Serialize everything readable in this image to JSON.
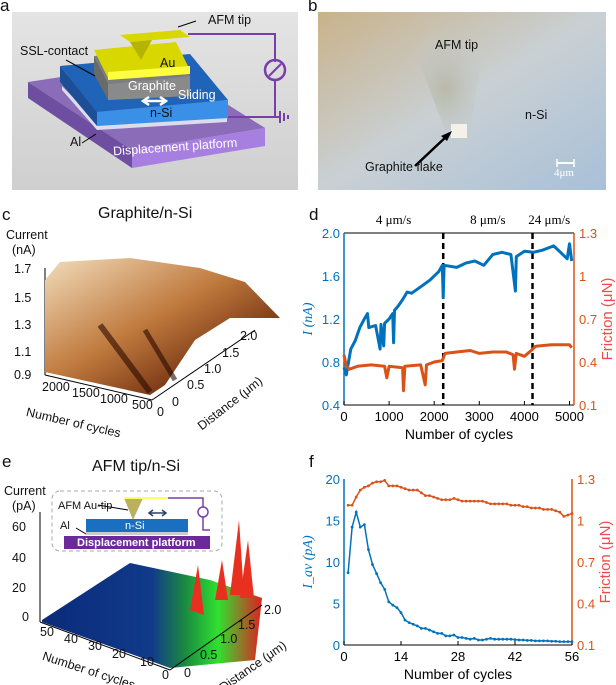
{
  "panels": {
    "a": {
      "label": "a",
      "labels": {
        "afm_tip": "AFM tip",
        "ssl_contact": "SSL-contact",
        "au": "Au",
        "graphite": "Graphite",
        "sliding": "Sliding",
        "nsi": "n-Si",
        "al": "Al",
        "platform": "Displacement platform"
      }
    },
    "b": {
      "label": "b",
      "labels": {
        "afm_tip": "AFM tip",
        "nsi": "n-Si",
        "flake": "Graphite flake",
        "scale": "4μm"
      }
    },
    "c": {
      "label": "c",
      "title": "Graphite/n-Si",
      "zlabel_1": "Current",
      "zlabel_2": "(nA)",
      "zticks": [
        "1.7",
        "1.5",
        "1.3",
        "1.1",
        "0.9"
      ],
      "xlabel": "Number of cycles",
      "xticks": [
        "2000",
        "1500",
        "1000",
        "500",
        "0"
      ],
      "ylabel": "Distance (μm)",
      "yticks": [
        "0",
        "0.5",
        "1.0",
        "1.5",
        "2.0"
      ]
    },
    "e": {
      "label": "e",
      "title": "AFM tip/n-Si",
      "zlabel_1": "Current",
      "zlabel_2": "(pA)",
      "zticks": [
        "60",
        "40",
        "20",
        "0"
      ],
      "xlabel": "Number of cycles",
      "xticks": [
        "50",
        "40",
        "30",
        "20",
        "10",
        "0"
      ],
      "ylabel": "Distance (μm)",
      "yticks": [
        "0",
        "0.5",
        "1.0",
        "1.5",
        "2.0"
      ],
      "inset": {
        "tip": "AFM Au-tip",
        "al": "Al",
        "nsi": "n-Si",
        "platform": "Displacement platform"
      }
    }
  },
  "chart_data": [
    {
      "panel": "d",
      "type": "line",
      "xlabel": "Number of cycles",
      "xlim": [
        0,
        5100
      ],
      "xticks": [
        0,
        1000,
        2000,
        3000,
        4000,
        5000
      ],
      "ylabel_left": "I (nA)",
      "ylim_left": [
        0.4,
        2.0
      ],
      "yticks_left": [
        "0.4",
        "0.8",
        "1.2",
        "1.6",
        "2.0"
      ],
      "ylabel_right": "Friction (μN)",
      "ylim_right": [
        0.1,
        1.3
      ],
      "yticks_right": [
        "0.1",
        "0.4",
        "0.7",
        "1",
        "1.3"
      ],
      "dividers": [
        2200,
        4180
      ],
      "regions": [
        "4 μm/s",
        "8 μm/s",
        "24 μm/s"
      ],
      "colors": {
        "current": "#0072bd",
        "friction": "#d95319"
      },
      "series": [
        {
          "axis": "left",
          "points": [
            [
              0,
              0.75
            ],
            [
              50,
              0.68
            ],
            [
              100,
              0.8
            ],
            [
              150,
              0.92
            ],
            [
              250,
              1.0
            ],
            [
              350,
              1.12
            ],
            [
              450,
              1.2
            ],
            [
              520,
              1.25
            ],
            [
              550,
              1.12
            ],
            [
              700,
              1.14
            ],
            [
              800,
              0.92
            ],
            [
              820,
              1.15
            ],
            [
              880,
              0.95
            ],
            [
              900,
              1.16
            ],
            [
              1000,
              1.2
            ],
            [
              1080,
              1.25
            ],
            [
              1100,
              0.98
            ],
            [
              1120,
              1.28
            ],
            [
              1200,
              1.32
            ],
            [
              1300,
              1.38
            ],
            [
              1400,
              1.45
            ],
            [
              1500,
              1.44
            ],
            [
              1700,
              1.5
            ],
            [
              1900,
              1.56
            ],
            [
              2100,
              1.64
            ],
            [
              2180,
              1.7
            ],
            [
              2200,
              1.4
            ],
            [
              2220,
              1.7
            ],
            [
              2500,
              1.68
            ],
            [
              2700,
              1.72
            ],
            [
              2900,
              1.74
            ],
            [
              3100,
              1.7
            ],
            [
              3300,
              1.8
            ],
            [
              3500,
              1.82
            ],
            [
              3700,
              1.8
            ],
            [
              3800,
              1.46
            ],
            [
              3820,
              1.78
            ],
            [
              4000,
              1.83
            ],
            [
              4200,
              1.82
            ],
            [
              4400,
              1.84
            ],
            [
              4650,
              1.88
            ],
            [
              4800,
              1.82
            ],
            [
              4950,
              1.76
            ],
            [
              5000,
              1.9
            ],
            [
              5050,
              1.74
            ]
          ]
        },
        {
          "axis": "right",
          "points": [
            [
              0,
              0.45
            ],
            [
              50,
              0.37
            ],
            [
              120,
              0.35
            ],
            [
              300,
              0.37
            ],
            [
              600,
              0.38
            ],
            [
              900,
              0.37
            ],
            [
              950,
              0.29
            ],
            [
              1000,
              0.37
            ],
            [
              1300,
              0.36
            ],
            [
              1320,
              0.2
            ],
            [
              1350,
              0.37
            ],
            [
              1700,
              0.38
            ],
            [
              1800,
              0.24
            ],
            [
              1830,
              0.38
            ],
            [
              2000,
              0.4
            ],
            [
              2180,
              0.41
            ],
            [
              2240,
              0.46
            ],
            [
              2500,
              0.47
            ],
            [
              2800,
              0.48
            ],
            [
              3000,
              0.46
            ],
            [
              3300,
              0.47
            ],
            [
              3600,
              0.47
            ],
            [
              3750,
              0.45
            ],
            [
              3780,
              0.35
            ],
            [
              3820,
              0.46
            ],
            [
              4000,
              0.44
            ],
            [
              4150,
              0.48
            ],
            [
              4250,
              0.51
            ],
            [
              4600,
              0.52
            ],
            [
              5000,
              0.52
            ],
            [
              5050,
              0.5
            ]
          ]
        }
      ]
    },
    {
      "panel": "f",
      "type": "line",
      "xlabel": "Number of cycles",
      "xlim": [
        0,
        56
      ],
      "xticks": [
        0,
        14,
        28,
        42,
        56
      ],
      "ylabel_left": "I_av (pA)",
      "ylim_left": [
        0,
        20
      ],
      "yticks_left": [
        "0",
        "5",
        "10",
        "15",
        "20"
      ],
      "ylabel_right": "Friction (μN)",
      "ylim_right": [
        0.1,
        1.3
      ],
      "yticks_right": [
        "0.1",
        "0.4",
        "0.7",
        "1",
        "1.3"
      ],
      "colors": {
        "current": "#0072bd",
        "friction": "#d95319"
      },
      "series": [
        {
          "axis": "left",
          "x": [
            1,
            2,
            3,
            4,
            5,
            6,
            7,
            8,
            9,
            10,
            11,
            12,
            13,
            14,
            15,
            16,
            17,
            18,
            19,
            20,
            21,
            22,
            23,
            24,
            25,
            26,
            27,
            28,
            29,
            30,
            31,
            32,
            33,
            34,
            35,
            36,
            37,
            38,
            39,
            40,
            41,
            42,
            43,
            44,
            45,
            46,
            47,
            48,
            49,
            50,
            51,
            52,
            53,
            54,
            55,
            56
          ],
          "y": [
            8.7,
            14.2,
            16,
            14.2,
            14.5,
            11.5,
            9.7,
            8.6,
            7.5,
            6.7,
            5.2,
            4.8,
            4.5,
            3.9,
            3.0,
            2.7,
            2.5,
            2.3,
            2.0,
            2.0,
            1.8,
            1.6,
            1.4,
            1.4,
            1.1,
            1.1,
            1.2,
            0.9,
            0.9,
            0.8,
            0.7,
            0.8,
            0.6,
            0.6,
            0.7,
            0.8,
            0.7,
            0.7,
            0.7,
            0.7,
            0.7,
            0.65,
            0.6,
            0.6,
            0.55,
            0.55,
            0.5,
            0.5,
            0.5,
            0.5,
            0.45,
            0.45,
            0.4,
            0.4,
            0.4,
            0.4
          ]
        },
        {
          "axis": "right",
          "x": [
            1,
            2,
            3,
            4,
            5,
            6,
            7,
            8,
            9,
            10,
            11,
            12,
            13,
            14,
            15,
            16,
            17,
            18,
            19,
            20,
            21,
            22,
            23,
            24,
            25,
            26,
            27,
            28,
            29,
            30,
            31,
            32,
            33,
            34,
            35,
            36,
            37,
            38,
            39,
            40,
            41,
            42,
            43,
            44,
            45,
            46,
            47,
            48,
            49,
            50,
            51,
            52,
            53,
            54,
            55,
            56
          ],
          "y": [
            1.11,
            1.11,
            1.17,
            1.22,
            1.24,
            1.25,
            1.27,
            1.28,
            1.28,
            1.29,
            1.25,
            1.25,
            1.25,
            1.24,
            1.23,
            1.22,
            1.22,
            1.22,
            1.2,
            1.18,
            1.18,
            1.17,
            1.16,
            1.15,
            1.15,
            1.15,
            1.16,
            1.15,
            1.14,
            1.14,
            1.14,
            1.14,
            1.14,
            1.14,
            1.13,
            1.12,
            1.12,
            1.12,
            1.12,
            1.12,
            1.11,
            1.11,
            1.11,
            1.1,
            1.1,
            1.09,
            1.09,
            1.09,
            1.08,
            1.08,
            1.08,
            1.07,
            1.06,
            1.03,
            1.04,
            1.05
          ]
        }
      ]
    }
  ]
}
